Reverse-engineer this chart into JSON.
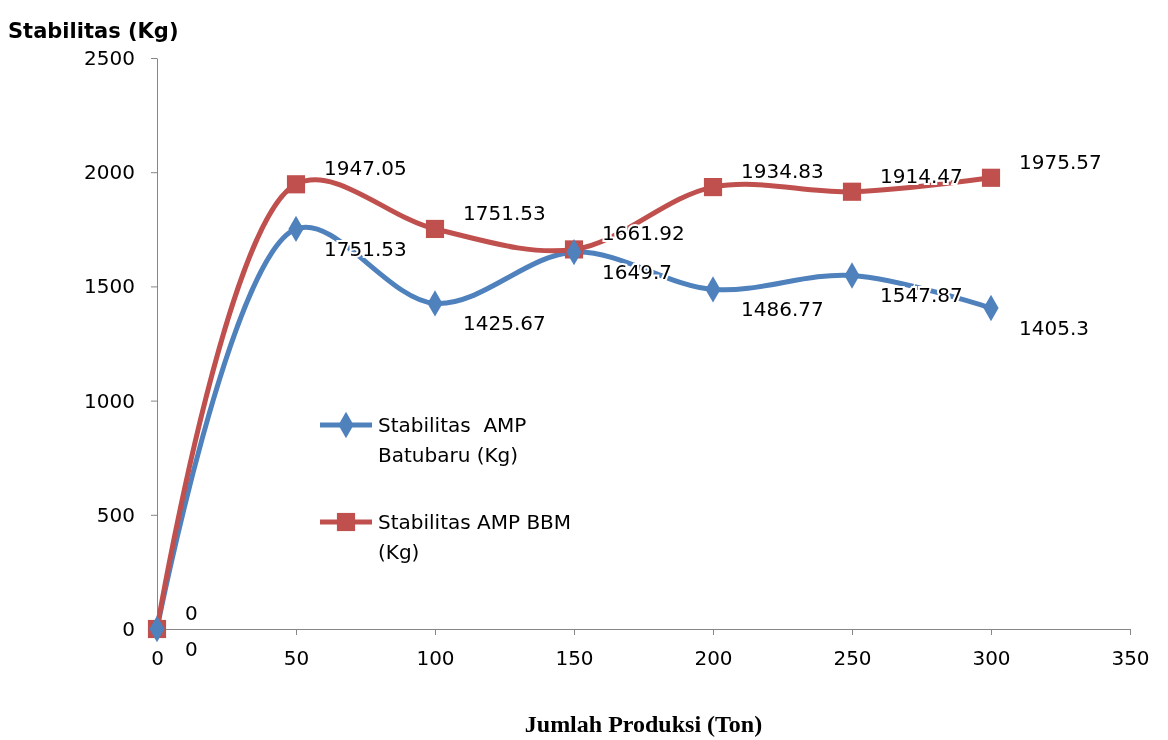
{
  "chart_data": {
    "type": "line",
    "xlabel": "Jumlah Produksi (Ton)",
    "ylabel": "Stabilitas (Kg)",
    "x": [
      0,
      50,
      100,
      150,
      200,
      250,
      300
    ],
    "series": [
      {
        "name": "Stabilitas  AMP Batubaru (Kg)",
        "color": "#4f81bd",
        "marker": "diamond",
        "values": [
          0,
          1751.53,
          1425.67,
          1649.7,
          1486.77,
          1547.87,
          1405.3
        ]
      },
      {
        "name": "Stabilitas AMP BBM (Kg)",
        "color": "#c0504d",
        "marker": "square",
        "values": [
          0,
          1947.05,
          1751.53,
          1661.92,
          1934.83,
          1914.47,
          1975.57
        ]
      }
    ],
    "xlim": [
      0,
      350
    ],
    "xticks": [
      0,
      50,
      100,
      150,
      200,
      250,
      300,
      350
    ],
    "ylim": [
      0,
      2500
    ],
    "yticks": [
      0,
      500,
      1000,
      1500,
      2000,
      2500
    ],
    "grid": false,
    "legend": "left",
    "data_labels": true,
    "line_style": "solid"
  }
}
